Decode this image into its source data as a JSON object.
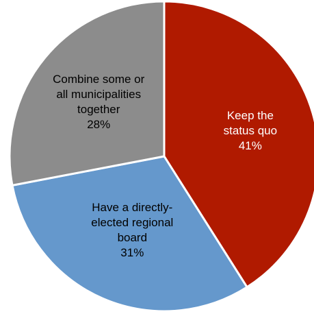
{
  "chart_data": {
    "type": "pie",
    "slices": [
      {
        "label_lines": [
          "Keep the",
          "status quo"
        ],
        "percent_text": "41%",
        "value": 41,
        "color": "#b01a00",
        "label_color": "#ffffff"
      },
      {
        "label_lines": [
          "Have a directly-",
          "elected regional",
          "board"
        ],
        "percent_text": "31%",
        "value": 31,
        "color": "#6598cc",
        "label_color": "#000000"
      },
      {
        "label_lines": [
          "Combine some or",
          "all municipalities",
          "together"
        ],
        "percent_text": "28%",
        "value": 28,
        "color": "#8c8c8c",
        "label_color": "#000000"
      }
    ],
    "start_angle_deg": 0,
    "direction": "clockwise",
    "border_color": "#ffffff"
  }
}
